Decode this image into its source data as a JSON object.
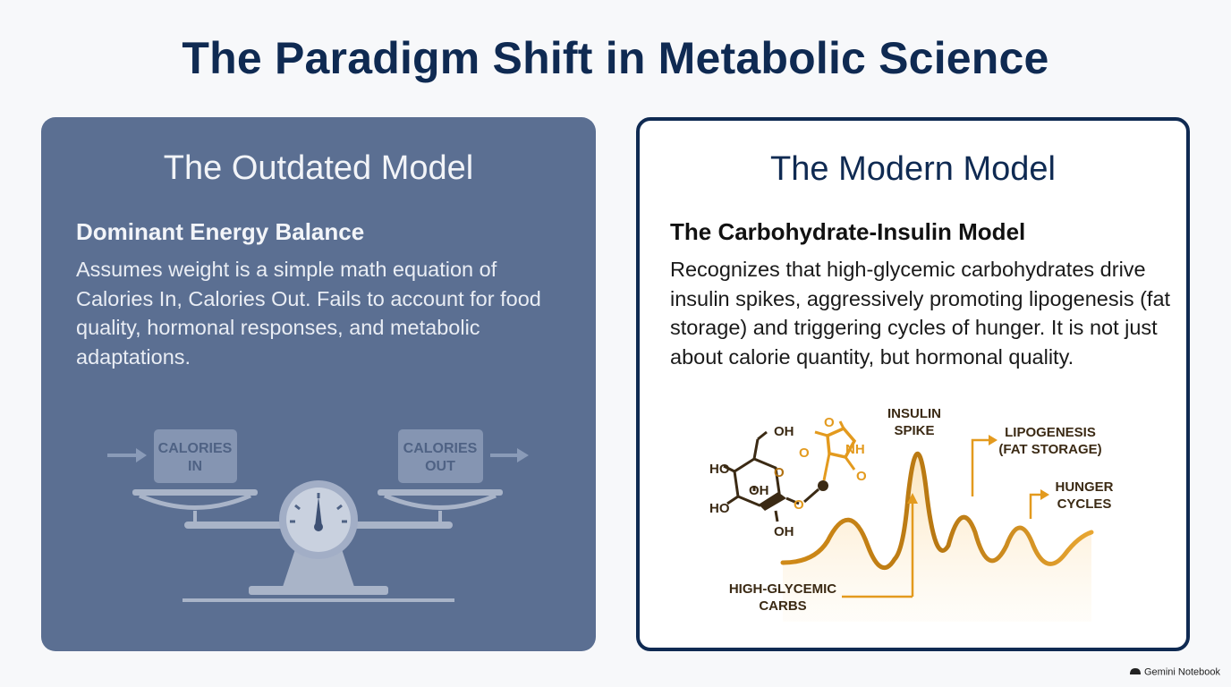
{
  "title": "The Paradigm Shift in Metabolic Science",
  "left_card": {
    "heading": "The Outdated Model",
    "subheading": "Dominant Energy Balance",
    "body": "Assumes weight is a simple math equation of Calories In, Calories Out. Fails to account for food quality, hormonal responses, and metabolic adaptations.",
    "scale": {
      "left_box": [
        "CALORIES",
        "IN"
      ],
      "right_box": [
        "CALORIES",
        "OUT"
      ]
    }
  },
  "right_card": {
    "heading": "The Modern Model",
    "subheading": "The Carbohydrate-Insulin Model",
    "body": "Recognizes that high-glycemic carbohydrates drive insulin spikes, aggressively promoting lipogenesis (fat storage) and triggering cycles of hunger. It is not just about calorie quantity, but hormonal quality.",
    "diagram": {
      "insulin": [
        "INSULIN",
        "SPIKE"
      ],
      "lipogenesis": [
        "LIPOGENESIS",
        "(FAT STORAGE)"
      ],
      "hunger": [
        "HUNGER",
        "CYCLES"
      ],
      "carbs": [
        "HIGH-GLYCEMIC",
        "CARBS"
      ],
      "molecule_labels": [
        "OH",
        "HO",
        "OH",
        "HO",
        "OH",
        "O",
        "O",
        "NH",
        "O",
        "O",
        "O"
      ]
    }
  },
  "footer": {
    "brand": "Gemini Notebook"
  },
  "colors": {
    "navy": "#0f2a52",
    "slate": "#5b6f92",
    "amber": "#e39a1e",
    "brown": "#5a3a12"
  }
}
